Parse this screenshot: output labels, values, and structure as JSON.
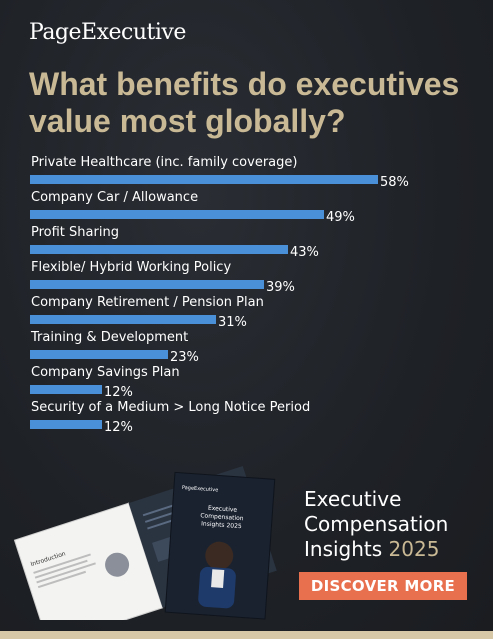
{
  "brand": "PageExecutive",
  "headline": "What benefits do executives value most globally?",
  "chart_data": {
    "type": "bar",
    "orientation": "horizontal",
    "categories": [
      "Private Healthcare (inc. family coverage)",
      "Company Car / Allowance",
      "Profit Sharing",
      "Flexible/ Hybrid Working Policy",
      "Company Retirement / Pension Plan",
      "Training & Development",
      "Company Savings Plan",
      "Security of a Medium > Long Notice Period"
    ],
    "values": [
      58,
      49,
      43,
      39,
      31,
      23,
      12,
      12
    ],
    "value_labels": [
      "58%",
      "49%",
      "43%",
      "39%",
      "31%",
      "23%",
      "12%",
      "12%"
    ],
    "bar_color": "#4a90d9",
    "grid": false
  },
  "cta": {
    "title_line1": "Executive",
    "title_line2": "Compensation",
    "title_line3a": "Insights",
    "title_line3b": "2025",
    "button_label": "DISCOVER MORE"
  },
  "book": {
    "cover_brand": "PageExecutive",
    "cover_title": "Executive Compensation Insights 2025",
    "inner_heading": "Introduction"
  },
  "colors": {
    "background": "#1f2227",
    "headline": "#c9b995",
    "bar": "#4a90d9",
    "button": "#e8704f",
    "footer": "#d7c9a8"
  }
}
